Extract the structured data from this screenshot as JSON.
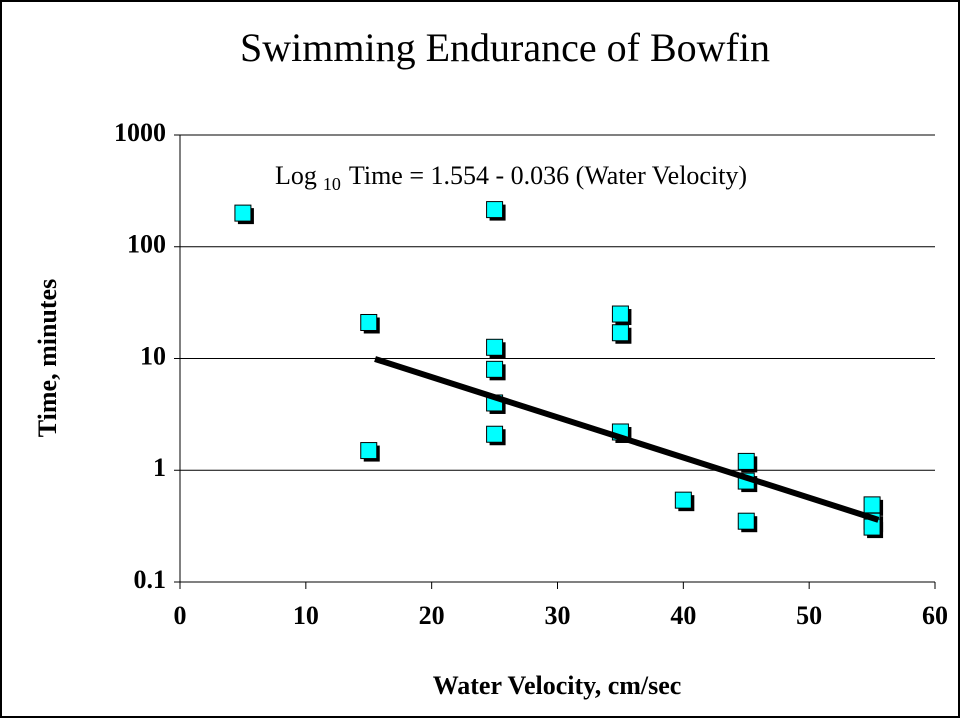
{
  "chart_data": {
    "type": "scatter",
    "title": "Swimming Endurance of Bowfin",
    "xlabel": "Water Velocity, cm/sec",
    "ylabel": "Time, minutes",
    "annotation": {
      "prefix": "Log",
      "subscript": "10",
      "equation": "Time = 1.554 - 0.036 (Water Velocity)"
    },
    "x": [
      5,
      15,
      15,
      25,
      25,
      25,
      25,
      25,
      35,
      35,
      35,
      40,
      45,
      45,
      45,
      55,
      55,
      55
    ],
    "values": [
      200,
      21,
      1.5,
      215,
      12.6,
      8,
      4,
      2.1,
      25,
      17,
      2.2,
      0.54,
      1.2,
      0.8,
      0.35,
      0.49,
      0.35,
      0.31
    ],
    "color": "#00ffff",
    "trendline": {
      "x": [
        15.5,
        55.5
      ],
      "values": [
        9.9,
        0.36
      ],
      "color": "#000000"
    },
    "xlim": [
      0,
      60
    ],
    "xticks": [
      0,
      10,
      20,
      30,
      40,
      50,
      60
    ],
    "ylim": [
      0.1,
      1000
    ],
    "yticks": [
      0.1,
      1,
      10,
      100,
      1000
    ],
    "log_y": true,
    "grid": true
  }
}
